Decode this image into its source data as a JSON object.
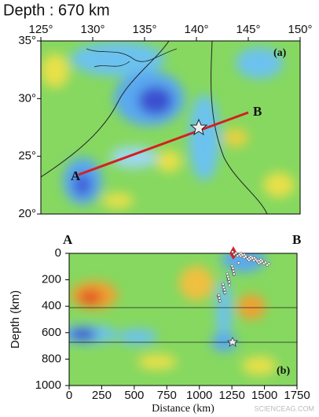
{
  "header": {
    "title": "Depth : 670 km"
  },
  "map": {
    "panel_label": "(a)",
    "x_ticks": [
      "125°",
      "130°",
      "135°",
      "140°",
      "145°",
      "150°"
    ],
    "y_ticks": [
      "35°",
      "30°",
      "25°",
      "20°"
    ],
    "point_a": "A",
    "point_b": "B"
  },
  "section": {
    "panel_label": "(b)",
    "start_label": "A",
    "end_label": "B",
    "y_axis_label": "Depth (km)",
    "x_axis_label": "Distance (km)",
    "y_ticks": [
      "0",
      "200",
      "400",
      "600",
      "800",
      "1000"
    ],
    "x_ticks": [
      "0",
      "250",
      "500",
      "750",
      "1000",
      "1250",
      "1500",
      "1750"
    ]
  },
  "watermark": "SCIENCEAG.COM"
}
